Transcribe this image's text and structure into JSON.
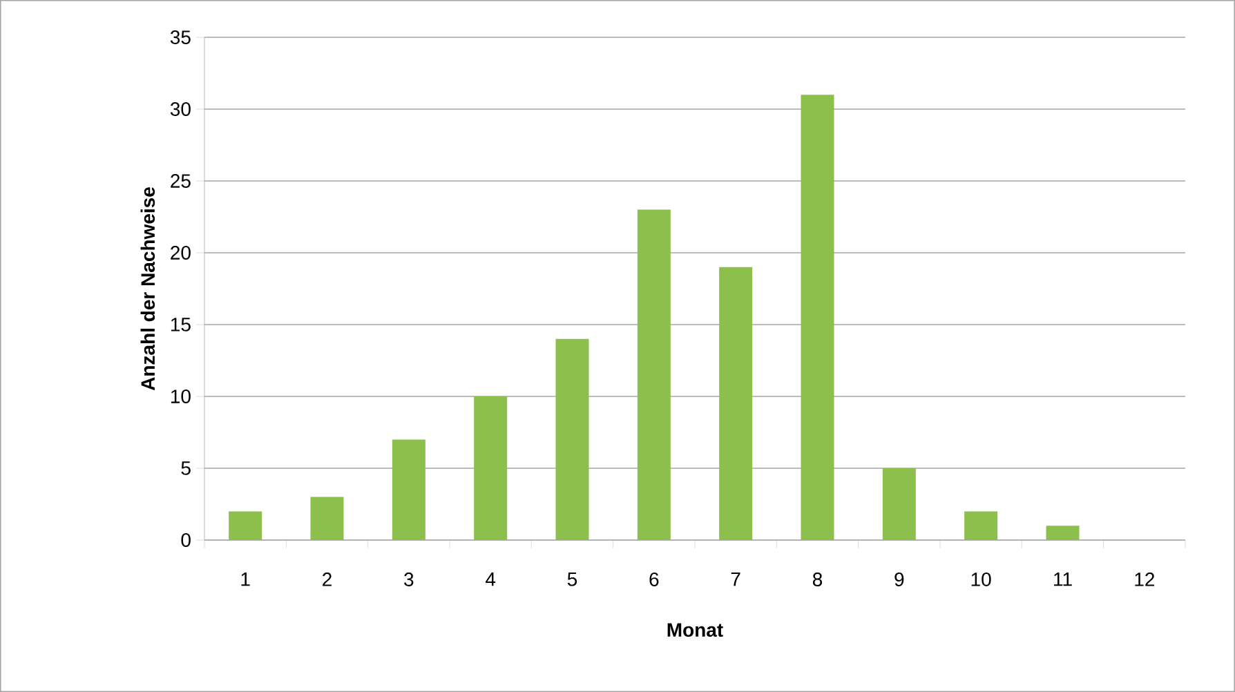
{
  "chart_data": {
    "type": "bar",
    "xlabel": "Monat",
    "ylabel": "Anzahl der Nachweise",
    "categories": [
      "1",
      "2",
      "3",
      "4",
      "5",
      "6",
      "7",
      "8",
      "9",
      "10",
      "11",
      "12"
    ],
    "values": [
      2,
      3,
      7,
      10,
      14,
      23,
      19,
      31,
      5,
      2,
      1,
      0
    ],
    "color": "#8dbf4c",
    "ylim": [
      0,
      35
    ],
    "yticks": [
      0,
      5,
      10,
      15,
      20,
      25,
      30,
      35
    ],
    "grid": "y"
  }
}
